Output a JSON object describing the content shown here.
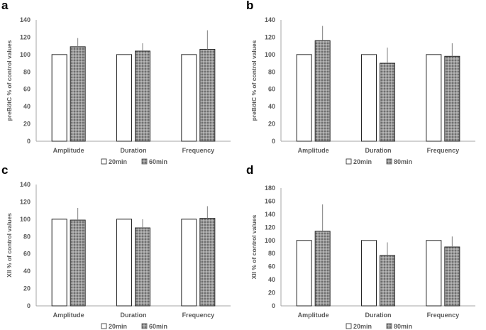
{
  "chart_data": [
    {
      "id": "a",
      "type": "bar",
      "panel_label": "a",
      "title": "",
      "xlabel": "",
      "ylabel": "preBötC % of control values",
      "ylim": [
        0,
        140
      ],
      "yticks": [
        0,
        20,
        40,
        60,
        80,
        100,
        120,
        140
      ],
      "grid": false,
      "legend": "bottom",
      "categories": [
        "Amplitude",
        "Duration",
        "Frequency"
      ],
      "series": [
        {
          "name": "20min",
          "values": [
            100,
            100,
            100
          ],
          "error": [
            0,
            0,
            0
          ],
          "style": "white"
        },
        {
          "name": "60min",
          "values": [
            109,
            104,
            106
          ],
          "error": [
            10,
            9,
            22
          ],
          "style": "gray-checker"
        }
      ]
    },
    {
      "id": "b",
      "type": "bar",
      "panel_label": "b",
      "title": "",
      "xlabel": "",
      "ylabel": "preBötC % of control values",
      "ylim": [
        0,
        140
      ],
      "yticks": [
        0,
        20,
        40,
        60,
        80,
        100,
        120,
        140
      ],
      "grid": false,
      "legend": "bottom",
      "categories": [
        "Amplitude",
        "Duration",
        "Frequency"
      ],
      "series": [
        {
          "name": "20min",
          "values": [
            100,
            100,
            100
          ],
          "error": [
            0,
            0,
            0
          ],
          "style": "white"
        },
        {
          "name": "80min",
          "values": [
            116,
            90,
            98
          ],
          "error": [
            17,
            18,
            15
          ],
          "style": "gray-checker"
        }
      ]
    },
    {
      "id": "c",
      "type": "bar",
      "panel_label": "c",
      "title": "",
      "xlabel": "",
      "ylabel": "XII % of control values",
      "ylim": [
        0,
        140
      ],
      "yticks": [
        0,
        20,
        40,
        60,
        80,
        100,
        120,
        140
      ],
      "grid": false,
      "legend": "bottom",
      "categories": [
        "Amplitude",
        "Duration",
        "Frequency"
      ],
      "series": [
        {
          "name": "20min",
          "values": [
            100,
            100,
            100
          ],
          "error": [
            0,
            0,
            0
          ],
          "style": "white"
        },
        {
          "name": "60min",
          "values": [
            99,
            90,
            101
          ],
          "error": [
            14,
            10,
            14
          ],
          "style": "gray-checker"
        }
      ]
    },
    {
      "id": "d",
      "type": "bar",
      "panel_label": "d",
      "title": "",
      "xlabel": "",
      "ylabel": "XII % of control values",
      "ylim": [
        0,
        180
      ],
      "yticks": [
        0,
        20,
        40,
        60,
        80,
        100,
        120,
        140,
        160,
        180
      ],
      "grid": false,
      "legend": "bottom",
      "categories": [
        "Amplitude",
        "Duration",
        "Frequency"
      ],
      "series": [
        {
          "name": "20min",
          "values": [
            100,
            100,
            100
          ],
          "error": [
            0,
            0,
            0
          ],
          "style": "white"
        },
        {
          "name": "80min",
          "values": [
            114,
            77,
            90
          ],
          "error": [
            41,
            20,
            16
          ],
          "style": "gray-checker"
        }
      ]
    }
  ],
  "colors": {
    "axis": "#a6a6a6",
    "text": "#595959",
    "bar_outline": "#262626",
    "bar_white": "#ffffff",
    "bar_gray": "#8c8c8c",
    "error_bar": "#7f7f7f"
  }
}
